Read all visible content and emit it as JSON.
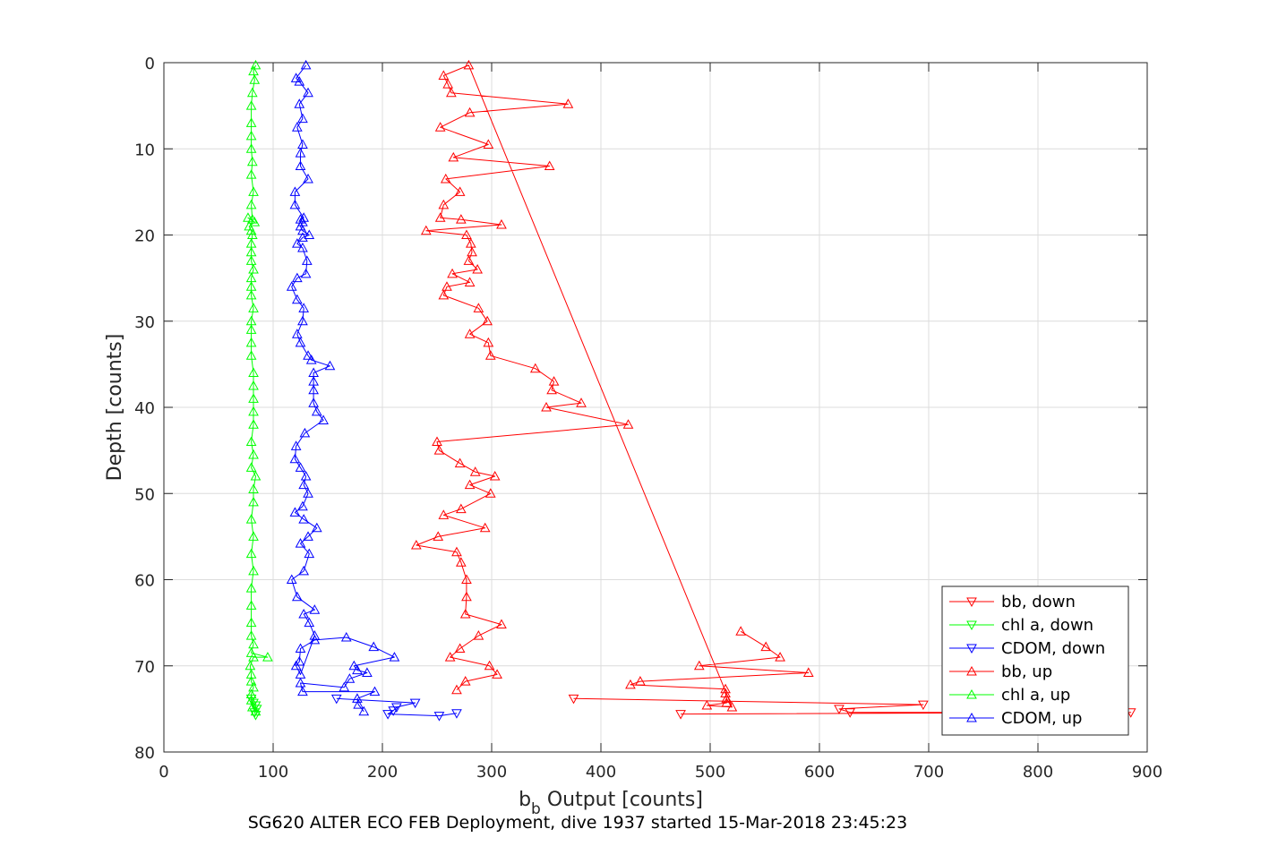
{
  "chart_data": {
    "type": "line",
    "title": "",
    "xlabel_main": "b",
    "xlabel_sub": "b",
    "xlabel_rest": " Output [counts]",
    "ylabel": "Depth [counts]",
    "caption": "SG620 ALTER ECO FEB Deployment, dive 1937 started 15-Mar-2018 23:45:23",
    "xlim": [
      0,
      900
    ],
    "ylim": [
      0,
      80
    ],
    "y_reversed": true,
    "grid": true,
    "legend_position": "bottom-right",
    "xticks": [
      0,
      100,
      200,
      300,
      400,
      500,
      600,
      700,
      800,
      900
    ],
    "yticks": [
      0,
      10,
      20,
      30,
      40,
      50,
      60,
      70,
      80
    ],
    "series": [
      {
        "name": "bb, down",
        "color": "#ff0000",
        "marker": "down",
        "points": [
          [
            375,
            73.8
          ],
          [
            695,
            74.5
          ],
          [
            618,
            75.0
          ],
          [
            628,
            75.4
          ],
          [
            885,
            75.4
          ],
          [
            473,
            75.6
          ]
        ]
      },
      {
        "name": "chl a, down",
        "color": "#00ff00",
        "marker": "down",
        "points": [
          [
            80,
            73.8
          ],
          [
            82,
            74.3
          ],
          [
            84,
            74.6
          ],
          [
            85,
            75.0
          ],
          [
            83,
            75.4
          ],
          [
            84,
            75.7
          ]
        ]
      },
      {
        "name": "CDOM, down",
        "color": "#0000ff",
        "marker": "down",
        "points": [
          [
            158,
            73.8
          ],
          [
            230,
            74.3
          ],
          [
            213,
            74.8
          ],
          [
            210,
            75.2
          ],
          [
            205,
            75.6
          ],
          [
            252,
            75.8
          ],
          [
            268,
            75.5
          ]
        ]
      },
      {
        "name": "bb, up",
        "color": "#ff0000",
        "marker": "up",
        "points": [
          [
            268,
            72.8
          ],
          [
            276,
            71.8
          ],
          [
            305,
            71.0
          ],
          [
            298,
            70.0
          ],
          [
            262,
            69.0
          ],
          [
            271,
            68.0
          ],
          [
            288,
            66.5
          ],
          [
            309,
            65.2
          ],
          [
            276,
            64.0
          ],
          [
            277,
            62.0
          ],
          [
            277,
            60.0
          ],
          [
            272,
            58.0
          ],
          [
            268,
            56.8
          ],
          [
            231,
            56.0
          ],
          [
            251,
            55.0
          ],
          [
            294,
            54.0
          ],
          [
            256,
            52.5
          ],
          [
            272,
            51.8
          ],
          [
            299,
            50.0
          ],
          [
            280,
            49.0
          ],
          [
            303,
            48.0
          ],
          [
            285,
            47.5
          ],
          [
            271,
            46.5
          ],
          [
            252,
            45.0
          ],
          [
            250,
            44.0
          ],
          [
            425,
            42.0
          ],
          [
            350,
            40.0
          ],
          [
            382,
            39.5
          ],
          [
            355,
            38.0
          ],
          [
            357,
            37.0
          ],
          [
            340,
            35.5
          ],
          [
            299,
            34.0
          ],
          [
            297,
            32.5
          ],
          [
            280,
            31.5
          ],
          [
            296,
            30.0
          ],
          [
            288,
            28.5
          ],
          [
            256,
            27.0
          ],
          [
            259,
            26.0
          ],
          [
            280,
            25.5
          ],
          [
            264,
            24.5
          ],
          [
            287,
            24.0
          ],
          [
            279,
            23.0
          ],
          [
            282,
            22.0
          ],
          [
            281,
            21.0
          ],
          [
            277,
            20.0
          ],
          [
            240,
            19.5
          ],
          [
            309,
            18.8
          ],
          [
            272,
            18.2
          ],
          [
            253,
            18.0
          ],
          [
            256,
            16.5
          ],
          [
            271,
            15.0
          ],
          [
            258,
            13.5
          ],
          [
            353,
            12.0
          ],
          [
            265,
            11.0
          ],
          [
            297,
            9.5
          ],
          [
            253,
            7.5
          ],
          [
            280,
            5.8
          ],
          [
            370,
            4.8
          ],
          [
            263,
            3.5
          ],
          [
            260,
            2.5
          ],
          [
            256,
            1.5
          ],
          [
            279,
            0.3
          ],
          [
            520,
            74.8
          ],
          [
            497,
            74.6
          ],
          [
            515,
            74.3
          ],
          [
            515,
            73.8
          ],
          [
            514,
            73.2
          ],
          [
            514,
            72.7
          ],
          [
            427,
            72.2
          ],
          [
            436,
            71.8
          ],
          [
            590,
            70.8
          ],
          [
            490,
            70.0
          ],
          [
            564,
            69.0
          ],
          [
            551,
            67.8
          ],
          [
            528,
            66.0
          ]
        ]
      },
      {
        "name": "chl a, up",
        "color": "#00ff00",
        "marker": "up",
        "points": [
          [
            84,
            75.3
          ],
          [
            81,
            74.8
          ],
          [
            80,
            74.0
          ],
          [
            80,
            73.3
          ],
          [
            82,
            72.5
          ],
          [
            80,
            71.8
          ],
          [
            80,
            71.0
          ],
          [
            79,
            70.0
          ],
          [
            82,
            69.0
          ],
          [
            95,
            69.0
          ],
          [
            80,
            68.5
          ],
          [
            82,
            67.5
          ],
          [
            80,
            66.5
          ],
          [
            80,
            65.0
          ],
          [
            80,
            63.0
          ],
          [
            80,
            61.0
          ],
          [
            82,
            59.0
          ],
          [
            80,
            57.0
          ],
          [
            82,
            55.0
          ],
          [
            80,
            53.0
          ],
          [
            82,
            51.0
          ],
          [
            82,
            49.5
          ],
          [
            84,
            48.0
          ],
          [
            80,
            47.0
          ],
          [
            82,
            45.5
          ],
          [
            80,
            44.0
          ],
          [
            82,
            42.0
          ],
          [
            82,
            40.5
          ],
          [
            82,
            39.0
          ],
          [
            82,
            37.5
          ],
          [
            82,
            36.0
          ],
          [
            80,
            34.0
          ],
          [
            80,
            32.5
          ],
          [
            80,
            31.0
          ],
          [
            80,
            30.0
          ],
          [
            82,
            28.5
          ],
          [
            80,
            27.0
          ],
          [
            80,
            26.0
          ],
          [
            80,
            25.0
          ],
          [
            82,
            24.0
          ],
          [
            80,
            23.0
          ],
          [
            80,
            22.0
          ],
          [
            80,
            21.0
          ],
          [
            81,
            20.0
          ],
          [
            80,
            19.5
          ],
          [
            78,
            19.0
          ],
          [
            83,
            18.5
          ],
          [
            77,
            18.0
          ],
          [
            81,
            18.2
          ],
          [
            80,
            16.5
          ],
          [
            82,
            15.0
          ],
          [
            80,
            13.0
          ],
          [
            81,
            11.5
          ],
          [
            80,
            10.0
          ],
          [
            80,
            8.5
          ],
          [
            80,
            7.0
          ],
          [
            80,
            5.0
          ],
          [
            81,
            3.5
          ],
          [
            83,
            2.0
          ],
          [
            82,
            1.0
          ],
          [
            84,
            0.3
          ]
        ]
      },
      {
        "name": "CDOM, up",
        "color": "#0000ff",
        "marker": "up",
        "points": [
          [
            183,
            75.3
          ],
          [
            178,
            74.5
          ],
          [
            177,
            73.8
          ],
          [
            193,
            73.0
          ],
          [
            127,
            73.0
          ],
          [
            125,
            72.0
          ],
          [
            165,
            72.5
          ],
          [
            170,
            71.5
          ],
          [
            186,
            70.8
          ],
          [
            177,
            70.5
          ],
          [
            174,
            70.0
          ],
          [
            211,
            69.0
          ],
          [
            192,
            67.8
          ],
          [
            167,
            66.7
          ],
          [
            138,
            67.0
          ],
          [
            125,
            68.0
          ],
          [
            124,
            69.5
          ],
          [
            121,
            70.0
          ],
          [
            125,
            71.0
          ],
          [
            138,
            66.5
          ],
          [
            133,
            65.0
          ],
          [
            128,
            64.0
          ],
          [
            138,
            63.5
          ],
          [
            122,
            62.0
          ],
          [
            117,
            60.0
          ],
          [
            128,
            59.0
          ],
          [
            133,
            57.0
          ],
          [
            125,
            55.8
          ],
          [
            132,
            55.0
          ],
          [
            140,
            54.0
          ],
          [
            128,
            53.0
          ],
          [
            120,
            52.2
          ],
          [
            127,
            51.5
          ],
          [
            132,
            50.0
          ],
          [
            128,
            49.0
          ],
          [
            130,
            48.0
          ],
          [
            125,
            47.0
          ],
          [
            120,
            46.0
          ],
          [
            121,
            44.5
          ],
          [
            129,
            43.0
          ],
          [
            146,
            41.5
          ],
          [
            140,
            40.5
          ],
          [
            137,
            39.5
          ],
          [
            137,
            38.0
          ],
          [
            137,
            37.0
          ],
          [
            137,
            36.0
          ],
          [
            152,
            35.2
          ],
          [
            135,
            34.5
          ],
          [
            132,
            34.0
          ],
          [
            125,
            32.5
          ],
          [
            122,
            31.5
          ],
          [
            127,
            30.0
          ],
          [
            128,
            28.5
          ],
          [
            122,
            27.5
          ],
          [
            117,
            26.0
          ],
          [
            122,
            25.0
          ],
          [
            130,
            24.5
          ],
          [
            131,
            23.0
          ],
          [
            127,
            21.5
          ],
          [
            122,
            21.0
          ],
          [
            127,
            20.3
          ],
          [
            133,
            20.0
          ],
          [
            127,
            19.5
          ],
          [
            125,
            19.0
          ],
          [
            127,
            18.5
          ],
          [
            125,
            18.2
          ],
          [
            128,
            18.0
          ],
          [
            120,
            16.5
          ],
          [
            120,
            15.0
          ],
          [
            132,
            13.5
          ],
          [
            125,
            12.0
          ],
          [
            125,
            10.5
          ],
          [
            127,
            9.5
          ],
          [
            122,
            7.5
          ],
          [
            127,
            6.5
          ],
          [
            124,
            4.8
          ],
          [
            132,
            3.5
          ],
          [
            124,
            2.2
          ],
          [
            121,
            1.8
          ],
          [
            130,
            0.3
          ]
        ]
      }
    ]
  }
}
